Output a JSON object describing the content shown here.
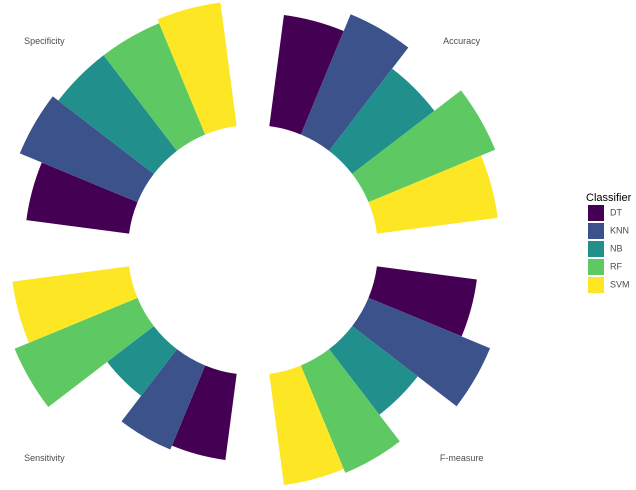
{
  "chart_data": {
    "type": "polar_bar",
    "categories": [
      "Accuracy",
      "F-measure",
      "Sensitivity",
      "Specificity"
    ],
    "legend_title": "Classifier",
    "ylim": [
      0,
      1
    ],
    "series": [
      {
        "name": "DT",
        "color": "#440154",
        "values": [
          0.8,
          0.72,
          0.62,
          0.74
        ]
      },
      {
        "name": "KNN",
        "color": "#3b528b",
        "values": [
          0.93,
          0.94,
          0.65,
          0.91
        ]
      },
      {
        "name": "NB",
        "color": "#21908c",
        "values": [
          0.74,
          0.59,
          0.42,
          0.86
        ]
      },
      {
        "name": "RF",
        "color": "#5ec962",
        "values": [
          0.98,
          0.83,
          0.95,
          0.86
        ]
      },
      {
        "name": "SVM",
        "color": "#fde725",
        "values": [
          0.87,
          0.8,
          0.84,
          0.89
        ]
      }
    ]
  }
}
